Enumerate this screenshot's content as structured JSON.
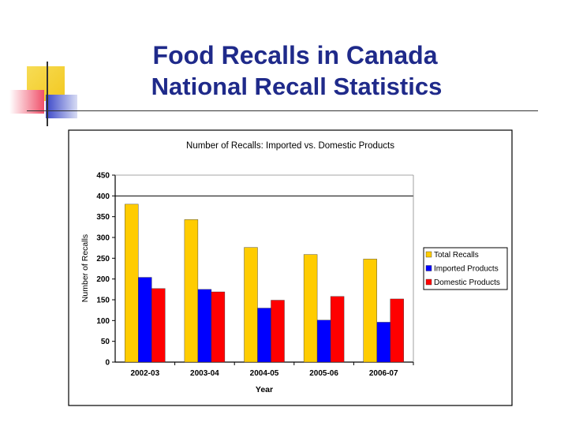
{
  "slide": {
    "title_line1": "Food Recalls in Canada",
    "title_line2": "National Recall Statistics"
  },
  "colors": {
    "title": "#1f2a8a",
    "deco_yellow": "#f5d33a",
    "deco_blue": "#3a47c8",
    "deco_red": "#f0506a"
  },
  "chart_data": {
    "type": "bar",
    "title": "Number of Recalls:  Imported vs. Domestic Products",
    "xlabel": "Year",
    "ylabel": "Number of Recalls",
    "ylim": [
      0,
      450
    ],
    "yticks": [
      0,
      50,
      100,
      150,
      200,
      250,
      300,
      350,
      400,
      450
    ],
    "categories": [
      "2002-03",
      "2003-04",
      "2004-05",
      "2005-06",
      "2006-07"
    ],
    "series": [
      {
        "name": "Total Recalls",
        "color": "#ffcc00",
        "values": [
          380,
          343,
          276,
          259,
          248
        ]
      },
      {
        "name": "Imported Products",
        "color": "#0000ff",
        "values": [
          204,
          175,
          130,
          101,
          96
        ]
      },
      {
        "name": "Domestic Products",
        "color": "#ff0000",
        "values": [
          177,
          169,
          149,
          158,
          152
        ]
      }
    ],
    "reference_line": 400,
    "legend_position": "right"
  }
}
